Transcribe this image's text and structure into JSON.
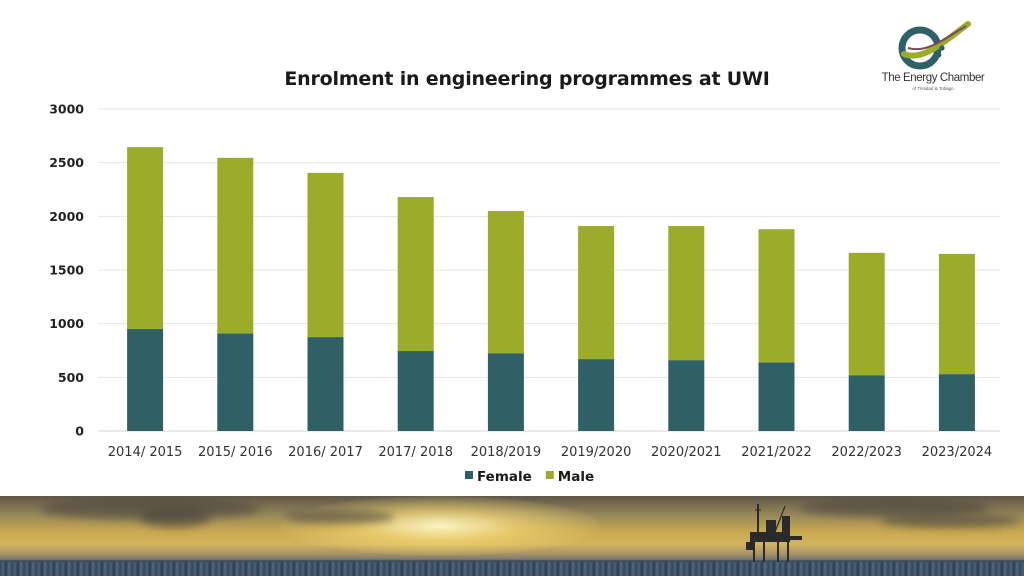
{
  "chart_data": {
    "type": "bar",
    "stacked": true,
    "title": "Enrolment in engineering programmes at UWI",
    "xlabel": "",
    "ylabel": "",
    "ylim": [
      0,
      3000
    ],
    "yticks": [
      0,
      500,
      1000,
      1500,
      2000,
      2500,
      3000
    ],
    "grid": true,
    "legend_position": "bottom",
    "categories": [
      "2014/ 2015",
      "2015/ 2016",
      "2016/ 2017",
      "2017/ 2018",
      "2018/2019",
      "2019/2020",
      "2020/2021",
      "2021/2022",
      "2022/2023",
      "2023/2024"
    ],
    "series": [
      {
        "name": "Female",
        "color": "#2e6066",
        "values": [
          950,
          910,
          875,
          745,
          725,
          670,
          660,
          640,
          520,
          530
        ]
      },
      {
        "name": "Male",
        "color": "#9bab2a",
        "values": [
          1695,
          1635,
          1530,
          1435,
          1325,
          1240,
          1250,
          1240,
          1140,
          1120
        ]
      }
    ]
  },
  "logo": {
    "name": "The Energy Chamber",
    "subtitle": "of Trinidad & Tobago",
    "icon": "energy-chamber-swirl-icon"
  },
  "banner": {
    "description": "offshore oil rig at sunset over the sea",
    "icon": "oil-rig-icon"
  }
}
